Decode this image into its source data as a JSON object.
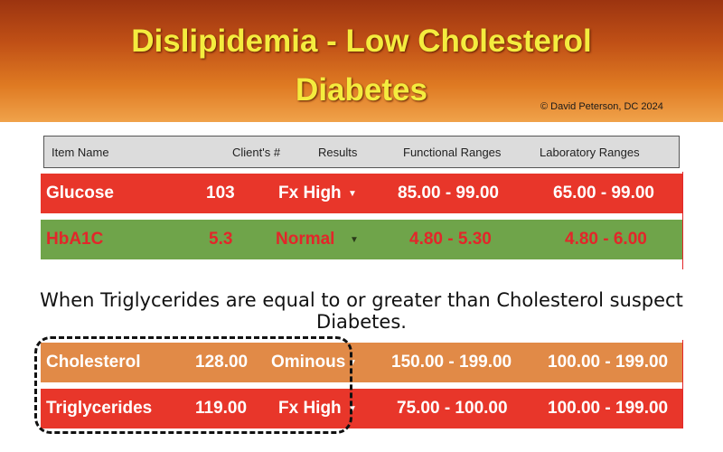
{
  "banner": {
    "title_line1": "Dislipidemia - Low Cholesterol",
    "title_line2": "Diabetes",
    "copyright": "© David Peterson, DC 2024",
    "gradient_top": "#9c3410",
    "gradient_bottom": "#f0a24a",
    "title_color": "#f4ec3e"
  },
  "table_header": {
    "item_name": "Item Name",
    "clients_num": "Client's #",
    "results": "Results",
    "functional": "Functional Ranges",
    "laboratory": "Laboratory Ranges"
  },
  "rows_top": [
    {
      "name": "Glucose",
      "value": "103",
      "result": "Fx High",
      "arrow": "▼",
      "functional": "85.00 - 99.00",
      "laboratory": "65.00 - 99.00",
      "bg": "#e8362a"
    },
    {
      "name": "HbA1C",
      "value": "5.3",
      "result": "Normal",
      "arrow": "▼",
      "functional": "4.80 - 5.30",
      "laboratory": "4.80 - 6.00",
      "bg": "#6fa44a"
    }
  ],
  "note": "When Triglycerides are equal to or greater than Cholesterol suspect Diabetes.",
  "rows_bottom": [
    {
      "name": "Cholesterol",
      "value": "128.00",
      "result": "Ominous",
      "arrow": "▼",
      "functional": "150.00 - 199.00",
      "laboratory": "100.00 - 199.00",
      "bg": "#e18a47"
    },
    {
      "name": "Triglycerides",
      "value": "119.00",
      "result": "Fx High",
      "arrow": "▼",
      "functional": "75.00 - 100.00",
      "laboratory": "100.00 - 199.00",
      "bg": "#e8362a"
    }
  ]
}
